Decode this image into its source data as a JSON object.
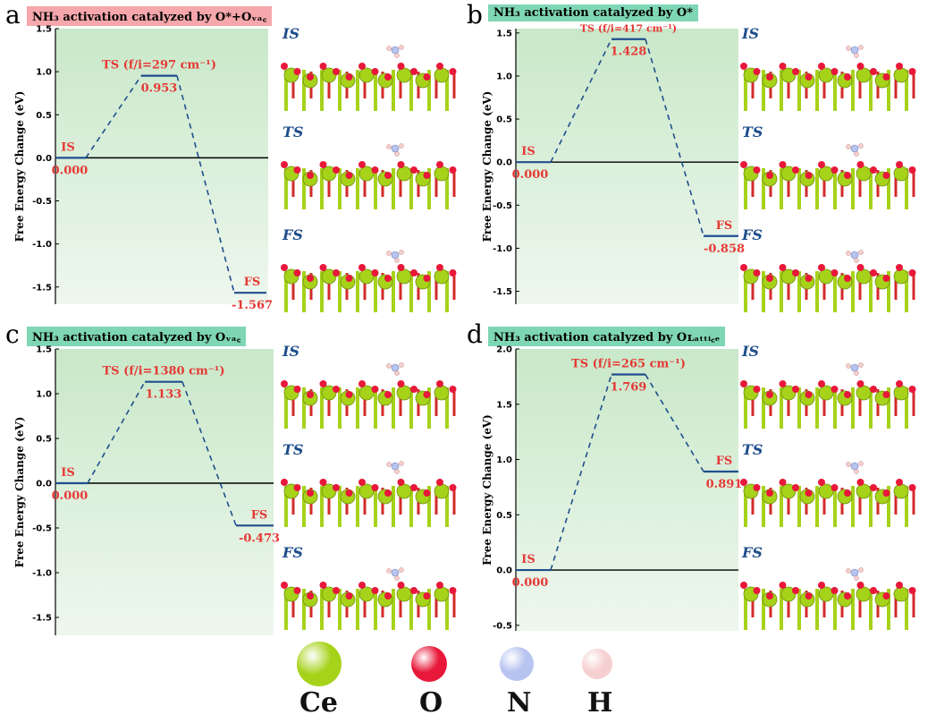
{
  "panels": [
    {
      "letter": "a",
      "title": "NH₃ activation catalyzed by O*+Oᵥₐ꜀",
      "title_bg": "#f6a7ab",
      "ylabel": "Free Energy Change (eV)",
      "chart_data": {
        "type": "line",
        "states": [
          "IS",
          "TS (f/i=297 cm⁻¹)",
          "FS"
        ],
        "values": [
          0.0,
          0.953,
          -1.567
        ],
        "value_labels": [
          "0.000",
          "0.953",
          "-1.567"
        ],
        "ylim": [
          -1.7,
          1.5
        ],
        "yticks": [
          "1.5",
          "1.0",
          "0.5",
          "0.0",
          "-0.5",
          "-1.0",
          "-1.5"
        ],
        "ytick_values": [
          1.5,
          1.0,
          0.5,
          0.0,
          -0.5,
          -1.0,
          -1.5
        ]
      }
    },
    {
      "letter": "b",
      "title": "NH₃ activation catalyzed by O*",
      "title_bg": "#7fd6b5",
      "ylabel": "Free Energy Change (eV)",
      "chart_data": {
        "type": "line",
        "states": [
          "IS",
          "TS (f/i=417 cm⁻¹)",
          "FS"
        ],
        "values": [
          0.0,
          1.428,
          -0.858
        ],
        "value_labels": [
          "0.000",
          "1.428",
          "-0.858"
        ],
        "ylim": [
          -1.65,
          1.55
        ],
        "yticks": [
          "1.5",
          "1.0",
          "0.5",
          "0.0",
          "-0.5",
          "-1.0",
          "-1.5"
        ],
        "ytick_values": [
          1.5,
          1.0,
          0.5,
          0.0,
          -0.5,
          -1.0,
          -1.5
        ]
      }
    },
    {
      "letter": "c",
      "title": "NH₃ activation catalyzed by Oᵥₐ꜀",
      "title_bg": "#7fd6b5",
      "ylabel": "Free Energy Change (eV)",
      "chart_data": {
        "type": "line",
        "states": [
          "IS",
          "TS (f/i=1380 cm⁻¹)",
          "FS"
        ],
        "values": [
          0.0,
          1.133,
          -0.473
        ],
        "value_labels": [
          "0.000",
          "1.133",
          "-0.473"
        ],
        "ylim": [
          -1.7,
          1.5
        ],
        "yticks": [
          "1.5",
          "1.0",
          "0.5",
          "0.0",
          "-0.5",
          "-1.0",
          "-1.5"
        ],
        "ytick_values": [
          1.5,
          1.0,
          0.5,
          0.0,
          -0.5,
          -1.0,
          -1.5
        ]
      }
    },
    {
      "letter": "d",
      "title": "NH₃ activation catalyzed by Oʟₐₜₜᵢ꜀ₑ",
      "title_bg": "#7fd6b5",
      "ylabel": "Free Energy Change (eV)",
      "chart_data": {
        "type": "line",
        "states": [
          "IS",
          "TS (f/i=265 cm⁻¹)",
          "FS"
        ],
        "values": [
          0.0,
          1.769,
          0.891
        ],
        "value_labels": [
          "0.000",
          "1.769",
          "0.891"
        ],
        "ylim": [
          -0.55,
          2.0
        ],
        "yticks": [
          "2.0",
          "1.5",
          "1.0",
          "0.5",
          "0.0",
          "-0.5"
        ],
        "ytick_values": [
          2.0,
          1.5,
          1.0,
          0.5,
          0.0,
          -0.5
        ]
      }
    }
  ],
  "structure_labels": [
    "IS",
    "TS",
    "FS"
  ],
  "legend": [
    {
      "label": "Ce",
      "color": "#a6d21a"
    },
    {
      "label": "O",
      "color": "#e8183a"
    },
    {
      "label": "N",
      "color": "#b8c4f0"
    },
    {
      "label": "H",
      "color": "#f6d0d0"
    }
  ],
  "colors": {
    "line": "#1f4e8c",
    "label": "#e53935",
    "plot_bg_top": "#c9e8c9",
    "plot_bg_bottom": "#eef7ee"
  }
}
